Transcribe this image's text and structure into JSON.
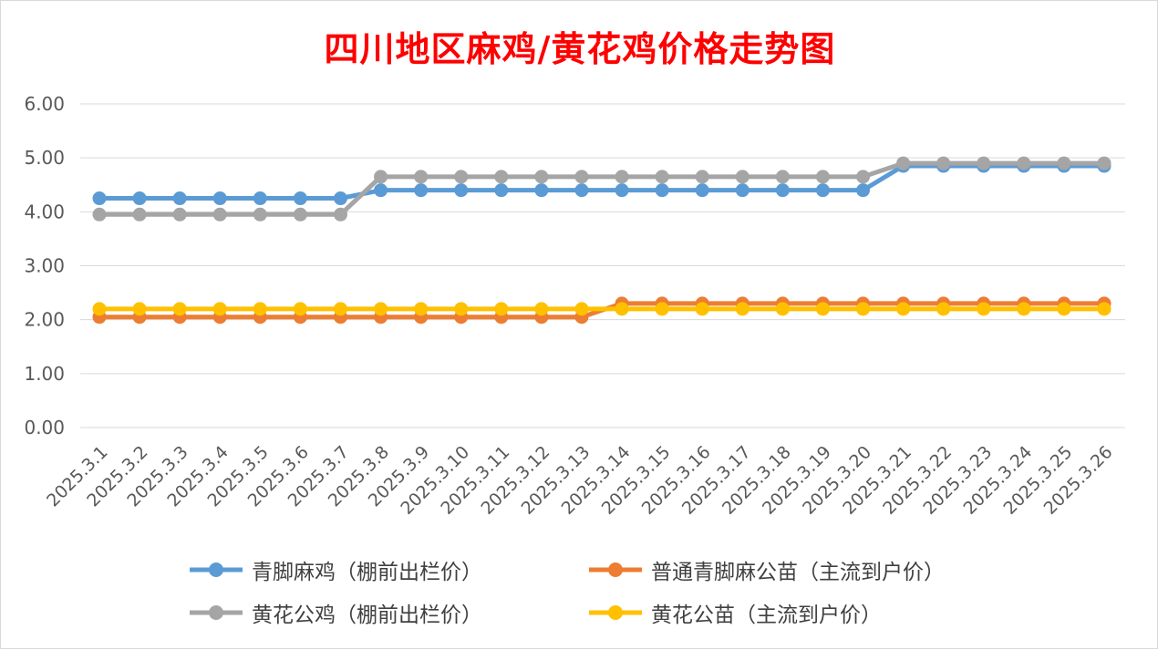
{
  "chart_data": {
    "type": "line",
    "title": "四川地区麻鸡/黄花鸡价格走势图",
    "xlabel": "",
    "ylabel": "",
    "ylim": [
      0,
      6
    ],
    "yticks": [
      "0.00",
      "1.00",
      "2.00",
      "3.00",
      "4.00",
      "5.00",
      "6.00"
    ],
    "grid": true,
    "legend_position": "bottom",
    "categories": [
      "2025.3.1",
      "2025.3.2",
      "2025.3.3",
      "2025.3.4",
      "2025.3.5",
      "2025.3.6",
      "2025.3.7",
      "2025.3.8",
      "2025.3.9",
      "2025.3.10",
      "2025.3.11",
      "2025.3.12",
      "2025.3.13",
      "2025.3.14",
      "2025.3.15",
      "2025.3.16",
      "2025.3.17",
      "2025.3.18",
      "2025.3.19",
      "2025.3.20",
      "2025.3.21",
      "2025.3.22",
      "2025.3.23",
      "2025.3.24",
      "2025.3.25",
      "2025.3.26"
    ],
    "series": [
      {
        "name": "青脚麻鸡（棚前出栏价）",
        "color": "#5b9bd5",
        "values": [
          4.25,
          4.25,
          4.25,
          4.25,
          4.25,
          4.25,
          4.25,
          4.4,
          4.4,
          4.4,
          4.4,
          4.4,
          4.4,
          4.4,
          4.4,
          4.4,
          4.4,
          4.4,
          4.4,
          4.4,
          4.85,
          4.85,
          4.85,
          4.85,
          4.85,
          4.85
        ]
      },
      {
        "name": "普通青脚麻公苗（主流到户价）",
        "color": "#ed7d31",
        "values": [
          2.05,
          2.05,
          2.05,
          2.05,
          2.05,
          2.05,
          2.05,
          2.05,
          2.05,
          2.05,
          2.05,
          2.05,
          2.05,
          2.3,
          2.3,
          2.3,
          2.3,
          2.3,
          2.3,
          2.3,
          2.3,
          2.3,
          2.3,
          2.3,
          2.3,
          2.3
        ]
      },
      {
        "name": "黄花公鸡（棚前出栏价）",
        "color": "#a5a5a5",
        "values": [
          3.95,
          3.95,
          3.95,
          3.95,
          3.95,
          3.95,
          3.95,
          4.65,
          4.65,
          4.65,
          4.65,
          4.65,
          4.65,
          4.65,
          4.65,
          4.65,
          4.65,
          4.65,
          4.65,
          4.65,
          4.9,
          4.9,
          4.9,
          4.9,
          4.9,
          4.9
        ]
      },
      {
        "name": "黄花公苗（主流到户价）",
        "color": "#ffc000",
        "values": [
          2.2,
          2.2,
          2.2,
          2.2,
          2.2,
          2.2,
          2.2,
          2.2,
          2.2,
          2.2,
          2.2,
          2.2,
          2.2,
          2.2,
          2.2,
          2.2,
          2.2,
          2.2,
          2.2,
          2.2,
          2.2,
          2.2,
          2.2,
          2.2,
          2.2,
          2.2
        ]
      }
    ]
  }
}
